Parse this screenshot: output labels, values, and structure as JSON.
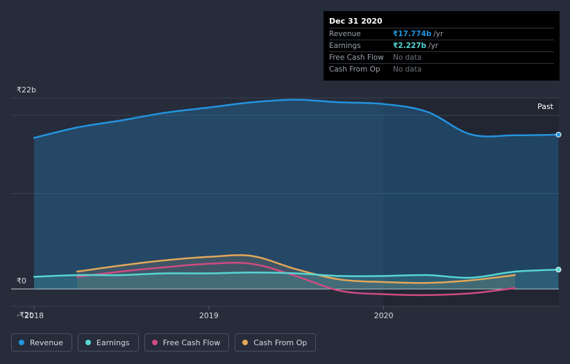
{
  "colors": {
    "background": "#262c3a",
    "revenue": "#2394df",
    "earnings": "#58d6d3",
    "free_cash_flow": "#d04b83",
    "cash_from_op": "#e3a85a",
    "grid": "#3a4150"
  },
  "tooltip": {
    "date": "Dec 31 2020",
    "rows": [
      {
        "label": "Revenue",
        "value": "₹17.774b",
        "unit": "/yr",
        "color": "#2394df"
      },
      {
        "label": "Earnings",
        "value": "₹2.227b",
        "unit": "/yr",
        "color": "#58d6d3"
      },
      {
        "label": "Free Cash Flow",
        "value": "No data",
        "unit": ""
      },
      {
        "label": "Cash From Op",
        "value": "No data",
        "unit": ""
      }
    ]
  },
  "legend": [
    {
      "label": "Revenue",
      "color": "#2394df"
    },
    {
      "label": "Earnings",
      "color": "#58d6d3"
    },
    {
      "label": "Free Cash Flow",
      "color": "#d04b83"
    },
    {
      "label": "Cash From Op",
      "color": "#e3a85a"
    }
  ],
  "chart_data": {
    "type": "line",
    "title": "",
    "xlabel": "",
    "ylabel": "",
    "past_label": "Past",
    "x_ticks": [
      "2018",
      "2019",
      "2020"
    ],
    "y_ticks": [
      "₹22b",
      "₹0",
      "-₹2b"
    ],
    "xlim": [
      "2018-01-01",
      "2020-12-31"
    ],
    "ylim": [
      -2,
      22
    ],
    "grid": true,
    "legend_position": "bottom",
    "series": [
      {
        "name": "Revenue",
        "color": "#2394df",
        "area": true,
        "points": [
          [
            "2018-01-01",
            17.4
          ],
          [
            "2018-04-01",
            18.6
          ],
          [
            "2018-07-01",
            19.4
          ],
          [
            "2018-10-01",
            20.3
          ],
          [
            "2019-01-01",
            20.9
          ],
          [
            "2019-04-01",
            21.5
          ],
          [
            "2019-07-01",
            21.8
          ],
          [
            "2019-10-01",
            21.5
          ],
          [
            "2020-01-01",
            21.3
          ],
          [
            "2020-04-01",
            20.4
          ],
          [
            "2020-07-01",
            17.8
          ],
          [
            "2020-10-01",
            17.7
          ],
          [
            "2020-12-31",
            17.774
          ]
        ]
      },
      {
        "name": "Earnings",
        "color": "#58d6d3",
        "area": true,
        "points": [
          [
            "2018-01-01",
            1.4
          ],
          [
            "2018-04-01",
            1.6
          ],
          [
            "2018-07-01",
            1.6
          ],
          [
            "2018-10-01",
            1.8
          ],
          [
            "2019-01-01",
            1.8
          ],
          [
            "2019-04-01",
            1.9
          ],
          [
            "2019-07-01",
            1.8
          ],
          [
            "2019-10-01",
            1.5
          ],
          [
            "2020-01-01",
            1.5
          ],
          [
            "2020-04-01",
            1.6
          ],
          [
            "2020-07-01",
            1.3
          ],
          [
            "2020-10-01",
            2.0
          ],
          [
            "2020-12-31",
            2.227
          ]
        ]
      },
      {
        "name": "Free Cash Flow",
        "color": "#d04b83",
        "area": false,
        "points": [
          [
            "2018-04-01",
            1.4
          ],
          [
            "2018-07-01",
            2.0
          ],
          [
            "2018-10-01",
            2.5
          ],
          [
            "2019-01-01",
            2.9
          ],
          [
            "2019-04-01",
            2.9
          ],
          [
            "2019-07-01",
            1.5
          ],
          [
            "2019-10-01",
            -0.2
          ],
          [
            "2020-01-01",
            -0.6
          ],
          [
            "2020-04-01",
            -0.7
          ],
          [
            "2020-07-01",
            -0.5
          ],
          [
            "2020-10-01",
            0.1
          ]
        ]
      },
      {
        "name": "Cash From Op",
        "color": "#e3a85a",
        "area": true,
        "points": [
          [
            "2018-04-01",
            2.0
          ],
          [
            "2018-07-01",
            2.7
          ],
          [
            "2018-10-01",
            3.3
          ],
          [
            "2019-01-01",
            3.7
          ],
          [
            "2019-04-01",
            3.8
          ],
          [
            "2019-07-01",
            2.3
          ],
          [
            "2019-10-01",
            1.1
          ],
          [
            "2020-01-01",
            0.8
          ],
          [
            "2020-04-01",
            0.7
          ],
          [
            "2020-07-01",
            1.0
          ],
          [
            "2020-10-01",
            1.6
          ]
        ]
      }
    ]
  }
}
